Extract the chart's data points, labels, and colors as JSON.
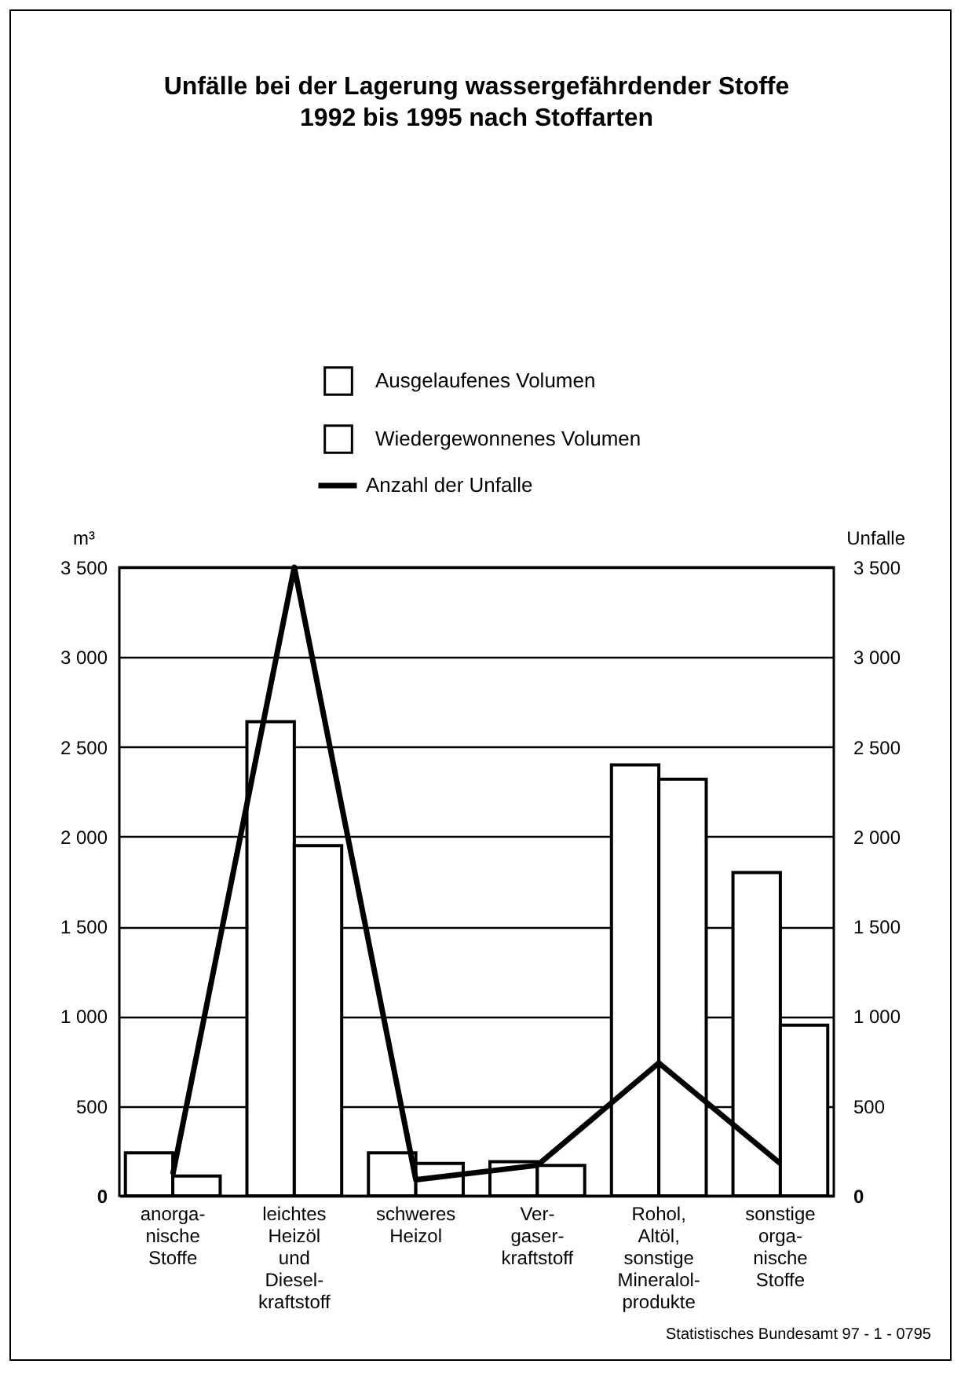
{
  "chart_data": {
    "type": "bar",
    "title": "Unfälle bei der Lagerung wassergefährdender Stoffe\n1992 bis 1995 nach Stoffarten",
    "categories": [
      "anorga-\nnische\nStoffe",
      "leichtes\nHeizöl\nund\nDiesel-\nkraftstoff",
      "schweres\nHeizol",
      "Ver-\ngaser-\nkraftstoff",
      "Rohol,\nAltöl,\nsonstige\nMineralol-\nprodukte",
      "sonstige\norga-\nnische\nStoffe"
    ],
    "series": [
      {
        "name": "Ausgelaufenes Volumen",
        "color": "#ffffff",
        "values": [
          240,
          2640,
          240,
          190,
          2400,
          1800
        ]
      },
      {
        "name": "Wiedergewonnenes Volumen",
        "color": "#ffffff",
        "values": [
          110,
          1950,
          180,
          170,
          2320,
          950
        ]
      },
      {
        "name": "Anzahl der Unfalle",
        "type": "line",
        "axis": "y2",
        "color": "#000000",
        "values": [
          120,
          3500,
          90,
          170,
          740,
          180
        ]
      }
    ],
    "ylabel": "m³",
    "y2label": "Unfalle",
    "ylim": [
      0,
      3500
    ],
    "yticks": [
      0,
      500,
      {
        "value": 1000,
        "label": "1 000"
      },
      {
        "value": 1500,
        "label": "1 500"
      },
      {
        "value": 2000,
        "label": "2 000"
      },
      {
        "value": 2500,
        "label": "2 500"
      },
      {
        "value": 3000,
        "label": "3 000"
      },
      {
        "value": 3500,
        "label": "3 500"
      }
    ],
    "y2lim": [
      0,
      3500
    ],
    "y2ticks": [
      0,
      500,
      {
        "value": 1000,
        "label": "1 000"
      },
      {
        "value": 1500,
        "label": "1 500"
      },
      {
        "value": 2000,
        "label": "2 000"
      },
      {
        "value": 2500,
        "label": "2 500"
      },
      {
        "value": 3000,
        "label": "3 000"
      },
      {
        "value": 3500,
        "label": "3 500"
      }
    ],
    "grid": "y",
    "legend": "top",
    "annotations": [
      "Statistisches Bundesamt 97 - 1 - 0795"
    ]
  }
}
